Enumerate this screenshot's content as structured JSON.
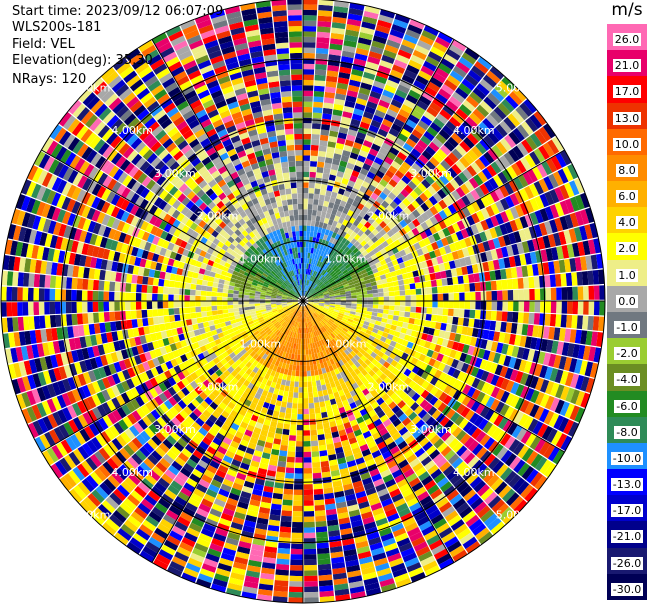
{
  "info": {
    "start_time": "Start time: 2023/09/12 06:07:09",
    "instrument": "WLS200s-181",
    "field": "Field: VEL",
    "elevation": "Elevation(deg): 35.30",
    "nrays": "NRays: 120"
  },
  "colorbar": {
    "unit": "m/s",
    "levels": [
      {
        "label": "26.0",
        "color": "#ff69b4"
      },
      {
        "label": "21.0",
        "color": "#e8006a"
      },
      {
        "label": "17.0",
        "color": "#ff0000"
      },
      {
        "label": "13.0",
        "color": "#ee3300"
      },
      {
        "label": "10.0",
        "color": "#ff6a00"
      },
      {
        "label": "8.0",
        "color": "#ff8c00"
      },
      {
        "label": "6.0",
        "color": "#ffb000"
      },
      {
        "label": "4.0",
        "color": "#ffd200"
      },
      {
        "label": "2.0",
        "color": "#ffff00"
      },
      {
        "label": "1.0",
        "color": "#eeee88"
      },
      {
        "label": "0.0",
        "color": "#a8a8a8"
      },
      {
        "label": "-1.0",
        "color": "#707880"
      },
      {
        "label": "-2.0",
        "color": "#9acd32"
      },
      {
        "label": "-4.0",
        "color": "#6b8e23"
      },
      {
        "label": "-6.0",
        "color": "#228b22"
      },
      {
        "label": "-8.0",
        "color": "#2e8b57"
      },
      {
        "label": "-10.0",
        "color": "#1e90ff"
      },
      {
        "label": "-13.0",
        "color": "#0000ff"
      },
      {
        "label": "-17.0",
        "color": "#0000cd"
      },
      {
        "label": "-21.0",
        "color": "#00008b"
      },
      {
        "label": "-26.0",
        "color": "#191970"
      },
      {
        "label": "-30.0",
        "color": "#000055"
      }
    ]
  },
  "chart_data": {
    "type": "heatmap",
    "projection": "polar PPI",
    "field": "VEL",
    "nrays": 120,
    "range_rings_km": [
      1.0,
      2.0,
      3.0,
      4.0,
      5.0
    ],
    "ring_labels": [
      "1.00km",
      "2.00km",
      "3.00km",
      "4.00km",
      "5.00km"
    ],
    "max_range_km": 5.0,
    "spokes_every_deg": 30,
    "velocity_range": [
      -30.0,
      26.0
    ],
    "pattern": {
      "inner_north": "negative velocities (-4 to -10 m/s), greens and blues",
      "inner_south": "positive velocities (6 to 13 m/s), oranges and reds",
      "mid_ring": "2 to 4 m/s yellows and light greens",
      "outer": "noisy mixture across all levels"
    }
  }
}
